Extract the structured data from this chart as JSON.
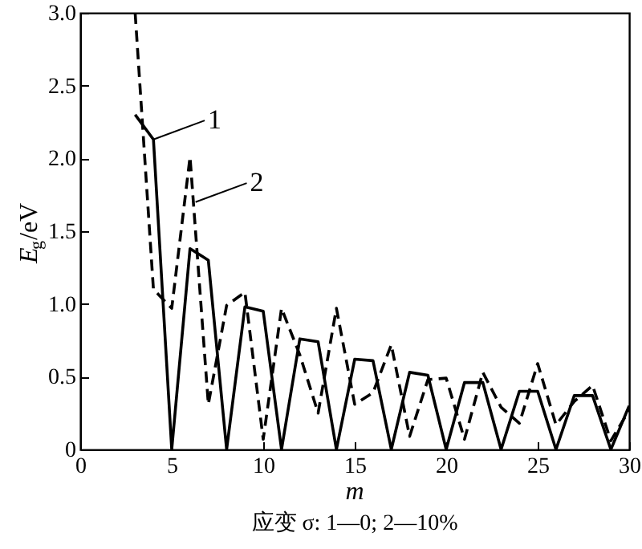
{
  "chart_data": {
    "type": "line",
    "xlabel": "m",
    "ylabel": "E$_{g}$/eV",
    "x": [
      3,
      4,
      5,
      6,
      7,
      8,
      9,
      10,
      11,
      12,
      13,
      14,
      15,
      16,
      17,
      18,
      19,
      20,
      21,
      22,
      23,
      24,
      25,
      26,
      27,
      28,
      29,
      30
    ],
    "series": [
      {
        "color": "#000000",
        "line_style": "solid",
        "values": [
          2.3,
          2.13,
          0,
          1.38,
          1.3,
          0,
          0.98,
          0.95,
          0,
          0.76,
          0.74,
          0,
          0.62,
          0.61,
          0,
          0.53,
          0.51,
          0,
          0.46,
          0.46,
          0,
          0.4,
          0.4,
          0,
          0.37,
          0.37,
          0,
          0.3
        ]
      },
      {
        "color": "#000000",
        "line_style": "dashed",
        "values": [
          3.0,
          1.1,
          0.97,
          2.01,
          0.31,
          0.99,
          1.08,
          0.07,
          0.97,
          0.65,
          0.25,
          0.97,
          0.31,
          0.39,
          0.72,
          0.09,
          0.48,
          0.49,
          0.07,
          0.53,
          0.29,
          0.18,
          0.59,
          0.17,
          0.33,
          0.44,
          0.06,
          0.27
        ]
      }
    ],
    "xlim": [
      0,
      30
    ],
    "xticks": [
      0,
      5,
      10,
      15,
      20,
      25,
      30
    ],
    "ylim": [
      0,
      3.0
    ],
    "yticks": [
      0,
      {
        "value": 0.5,
        "label": "0.5"
      },
      {
        "value": 1,
        "label": "1.0"
      },
      {
        "value": 1.5,
        "label": "1.5"
      },
      {
        "value": 2,
        "label": "2.0"
      },
      {
        "value": 2.5,
        "label": "2.5"
      },
      {
        "value": 3,
        "label": "3.0"
      }
    ],
    "annotations": [
      {
        "text": "1",
        "x": 4,
        "y": 2.13
      },
      {
        "text": "2",
        "x": 6.3,
        "y": 1.7
      },
      "应变 σ: 1—0; 2—10%"
    ]
  }
}
